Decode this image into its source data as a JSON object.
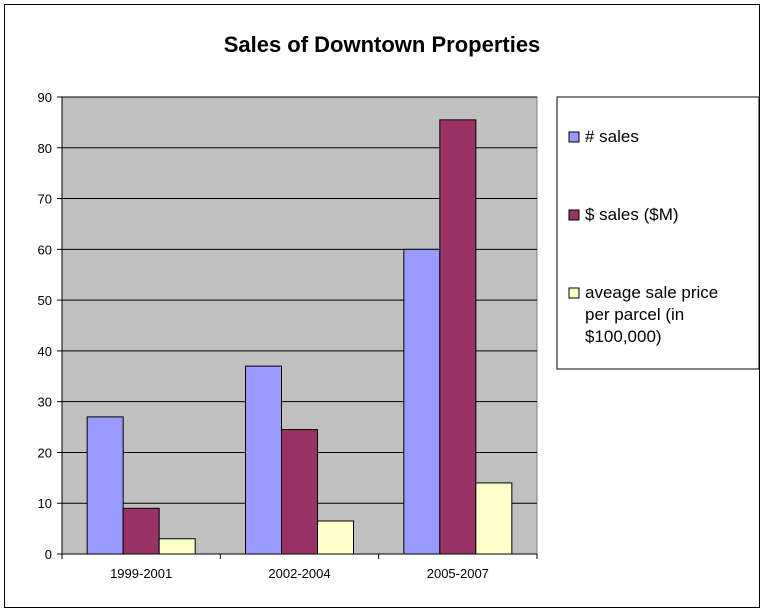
{
  "chart_data": {
    "type": "bar",
    "title": "Sales of Downtown Properties",
    "xlabel": "",
    "ylabel": "",
    "categories": [
      "1999-2001",
      "2002-2004",
      "2005-2007"
    ],
    "series": [
      {
        "name": "# sales",
        "values": [
          27,
          37,
          60
        ],
        "color": "#9999ff"
      },
      {
        "name": "$ sales ($M)",
        "values": [
          9,
          24.5,
          85.5
        ],
        "color": "#993366"
      },
      {
        "name": "aveage sale price per parcel (in $100,000)",
        "legend_lines": [
          "aveage sale price",
          "per parcel (in",
          "$100,000)"
        ],
        "values": [
          3,
          6.5,
          14
        ],
        "color": "#ffffcc"
      }
    ],
    "ylim": [
      0,
      90
    ],
    "yticks": [
      0,
      10,
      20,
      30,
      40,
      50,
      60,
      70,
      80,
      90
    ],
    "grid": true,
    "plot_background": "#c0c0c0",
    "legend_position": "right"
  }
}
